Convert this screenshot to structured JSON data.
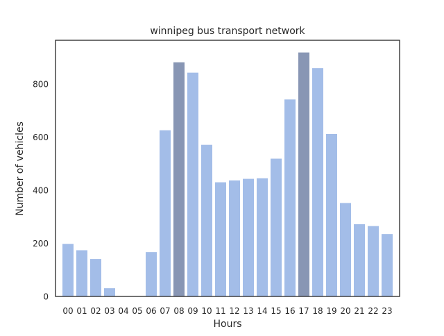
{
  "chart_data": {
    "type": "bar",
    "title": "winnipeg bus transport network",
    "xlabel": "Hours",
    "ylabel": "Number of vehicles",
    "categories": [
      "00",
      "01",
      "02",
      "03",
      "04",
      "05",
      "06",
      "07",
      "08",
      "09",
      "10",
      "11",
      "12",
      "13",
      "14",
      "15",
      "16",
      "17",
      "18",
      "19",
      "20",
      "21",
      "22",
      "23"
    ],
    "values": [
      198,
      174,
      141,
      31,
      0,
      0,
      167,
      626,
      882,
      843,
      571,
      430,
      437,
      443,
      445,
      519,
      742,
      919,
      860,
      612,
      352,
      272,
      265,
      235
    ],
    "highlight": [
      "08",
      "17"
    ],
    "yticks": [
      0,
      200,
      400,
      600,
      800
    ],
    "ylim": [
      0,
      965
    ],
    "grid": false,
    "colors": {
      "bar": "#a3bde8",
      "bar_highlight": "#8896b4",
      "axis": "#262626"
    }
  }
}
